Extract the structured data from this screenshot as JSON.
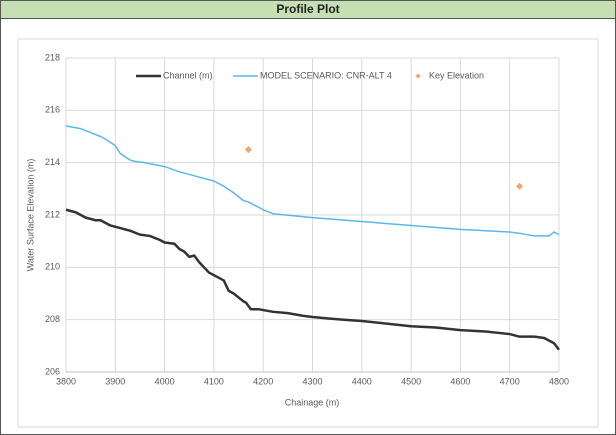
{
  "header": {
    "title": "Profile Plot"
  },
  "chart_data": {
    "type": "line",
    "xlabel": "Chainage (m)",
    "ylabel": "Water Surface Elevation (m)",
    "xlim": [
      3800,
      4800
    ],
    "xticks": [
      3800,
      3900,
      4000,
      4100,
      4200,
      4300,
      4400,
      4500,
      4600,
      4700,
      4800
    ],
    "ylim": [
      206,
      218
    ],
    "yticks": [
      206,
      208,
      210,
      212,
      214,
      216,
      218
    ],
    "grid": true,
    "legend": "top",
    "series": [
      {
        "name": "Channel (m)",
        "color": "#333333",
        "type": "line",
        "x": [
          3800,
          3820,
          3840,
          3860,
          3870,
          3890,
          3910,
          3930,
          3950,
          3970,
          3990,
          4000,
          4020,
          4030,
          4040,
          4050,
          4060,
          4070,
          4090,
          4110,
          4120,
          4130,
          4140,
          4150,
          4160,
          4165,
          4175,
          4190,
          4220,
          4250,
          4280,
          4300,
          4330,
          4360,
          4400,
          4450,
          4500,
          4550,
          4600,
          4650,
          4700,
          4720,
          4750,
          4770,
          4790,
          4800
        ],
        "values": [
          212.2,
          212.1,
          211.9,
          211.8,
          211.8,
          211.6,
          211.5,
          211.4,
          211.25,
          211.2,
          211.05,
          210.95,
          210.9,
          210.7,
          210.6,
          210.4,
          210.45,
          210.2,
          209.8,
          209.6,
          209.5,
          209.1,
          209.0,
          208.85,
          208.7,
          208.65,
          208.4,
          208.4,
          208.3,
          208.25,
          208.15,
          208.1,
          208.05,
          208.0,
          207.95,
          207.85,
          207.75,
          207.7,
          207.6,
          207.55,
          207.45,
          207.35,
          207.35,
          207.3,
          207.1,
          206.85
        ]
      },
      {
        "name": "MODEL SCENARIO: CNR-ALT 4",
        "color": "#5bb8e6",
        "type": "line",
        "x": [
          3800,
          3830,
          3850,
          3870,
          3880,
          3900,
          3910,
          3930,
          3940,
          3960,
          4000,
          4030,
          4070,
          4100,
          4120,
          4140,
          4160,
          4170,
          4200,
          4220,
          4300,
          4400,
          4500,
          4600,
          4700,
          4720,
          4750,
          4780,
          4790,
          4800
        ],
        "values": [
          215.4,
          215.3,
          215.15,
          215.0,
          214.9,
          214.65,
          214.35,
          214.1,
          214.05,
          214.0,
          213.85,
          213.65,
          213.45,
          213.3,
          213.1,
          212.85,
          212.55,
          212.5,
          212.2,
          212.05,
          211.9,
          211.75,
          211.6,
          211.45,
          211.35,
          211.3,
          211.2,
          211.2,
          211.35,
          211.25
        ]
      },
      {
        "name": "Key Elevation",
        "color": "#f4a36a",
        "type": "scatter",
        "x": [
          4170,
          4720
        ],
        "values": [
          214.5,
          213.1
        ]
      }
    ]
  }
}
